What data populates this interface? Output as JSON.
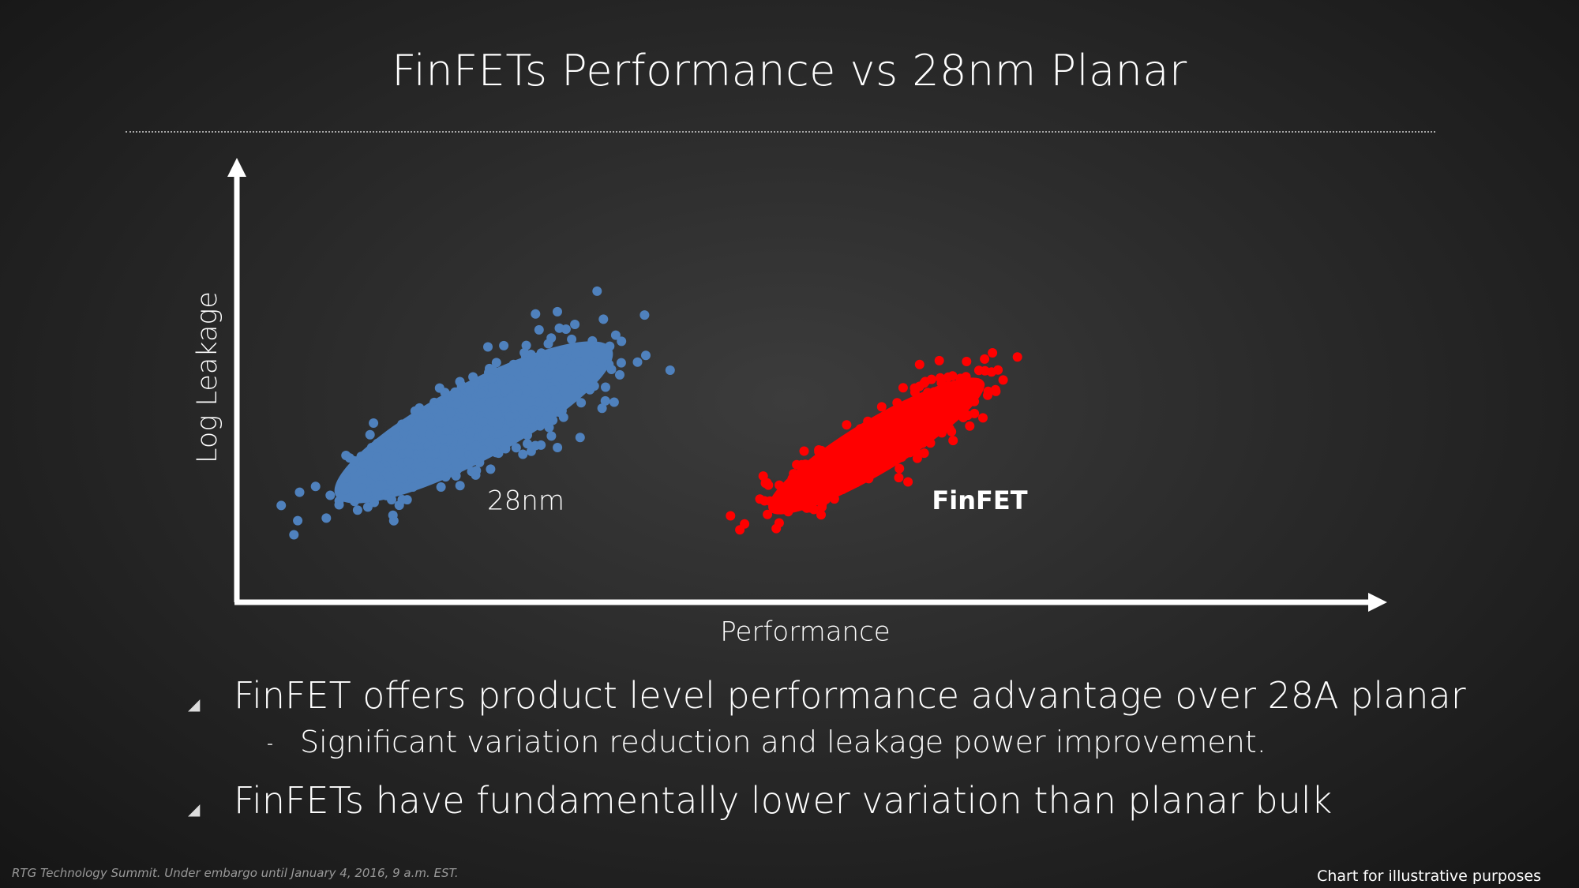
{
  "title": "FinFETs Performance vs 28nm Planar",
  "chart": {
    "y_axis_label": "Log Leakage",
    "x_axis_label": "Performance",
    "groups": [
      {
        "label": "28nm",
        "color": "#4f81bd"
      },
      {
        "label": "FinFET",
        "color": "#ff0000"
      }
    ]
  },
  "bullets": [
    {
      "text": "FinFET offers product level performance advantage over 28A planar",
      "sub": [
        "Significant variation reduction and leakage power improvement."
      ]
    },
    {
      "text": "FinFETs have fundamentally lower variation than planar bulk"
    }
  ],
  "footer": {
    "left": "RTG Technology Summit. Under embargo until January 4, 2016, 9 a.m. EST.",
    "right": "Chart for illustrative purposes"
  }
}
